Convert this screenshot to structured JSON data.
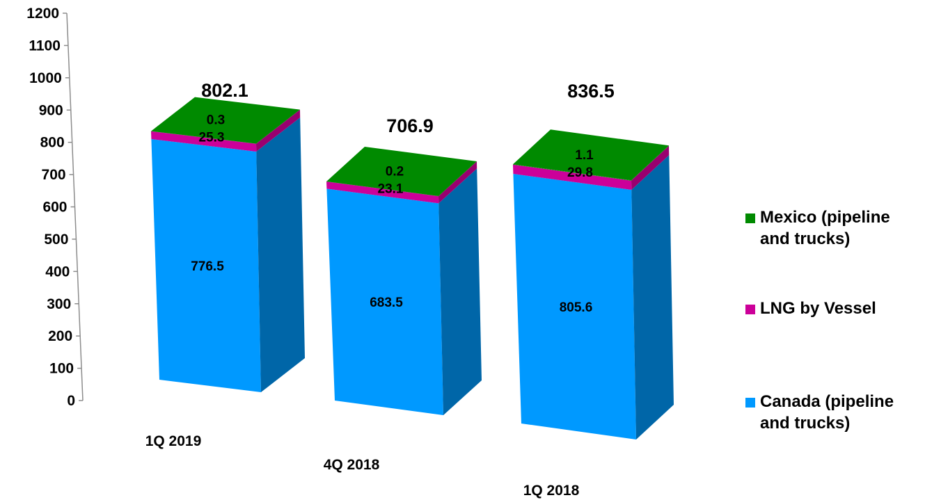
{
  "chart_data": {
    "type": "bar",
    "stacked": true,
    "three_d": true,
    "categories": [
      "1Q 2019",
      "4Q 2018",
      "1Q 2018"
    ],
    "series": [
      {
        "name": "Canada (pipeline and trucks)",
        "values": [
          776.5,
          683.5,
          805.6
        ],
        "labels": [
          "776.5",
          "683.5",
          "805.6"
        ],
        "color": "#0099FF",
        "side_color": "#0066A8"
      },
      {
        "name": "LNG by Vessel",
        "values": [
          25.3,
          23.1,
          29.8
        ],
        "labels": [
          "25.3",
          "23.1",
          "29.8"
        ],
        "color": "#CC0099",
        "side_color": "#99006F"
      },
      {
        "name": "Mexico (pipeline and trucks)",
        "values": [
          0.3,
          0.2,
          1.1
        ],
        "labels": [
          "0.3",
          "0.2",
          "1.1"
        ],
        "color": "#008A00",
        "side_color": "#006400"
      }
    ],
    "totals": [
      "802.1",
      "706.9",
      "836.5"
    ],
    "yticks": [
      "0",
      "100",
      "200",
      "300",
      "400",
      "500",
      "600",
      "700",
      "800",
      "900",
      "1000",
      "1100",
      "1200"
    ],
    "ylim": [
      0,
      1200
    ],
    "legend": {
      "position": "right",
      "items": [
        {
          "line1": "Mexico (pipeline",
          "line2": "and trucks)",
          "color": "#008A00"
        },
        {
          "line1": "LNG by Vessel",
          "line2": "",
          "color": "#CC0099"
        },
        {
          "line1": "Canada (pipeline",
          "line2": "and trucks)",
          "color": "#0099FF"
        }
      ]
    },
    "top_color": "#008A00",
    "grid": false
  }
}
